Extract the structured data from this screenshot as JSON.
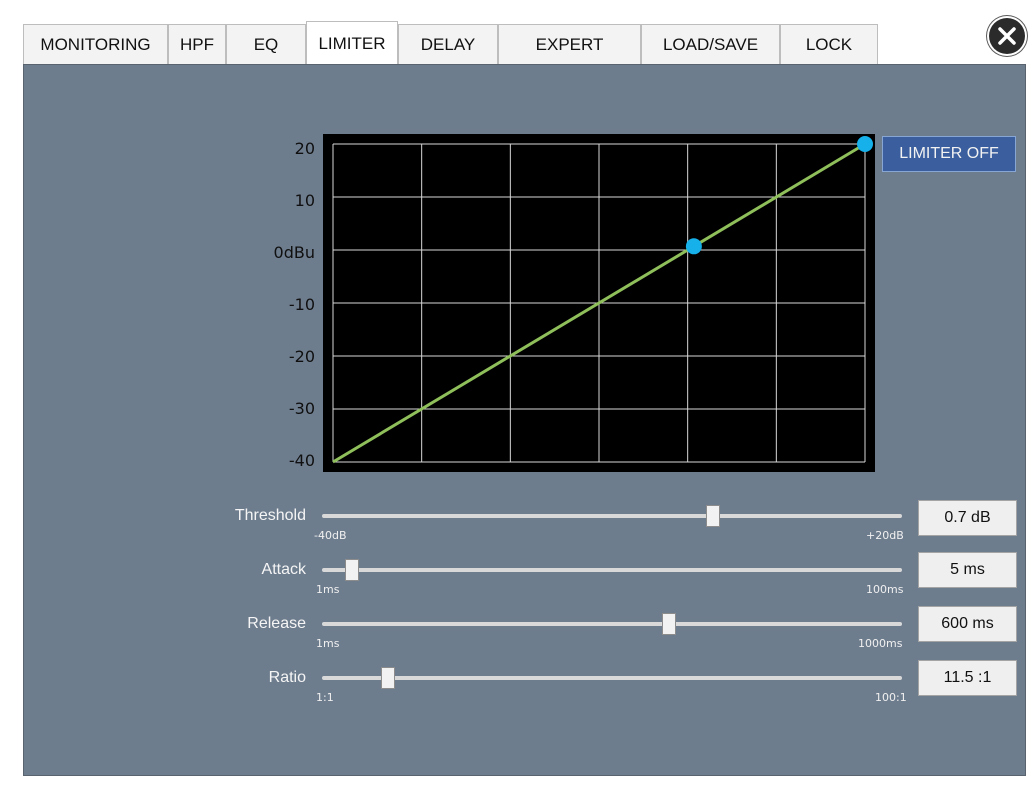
{
  "tabs": [
    {
      "label": "MONITORING",
      "active": false
    },
    {
      "label": "HPF",
      "active": false
    },
    {
      "label": "EQ",
      "active": false
    },
    {
      "label": "LIMITER",
      "active": true
    },
    {
      "label": "DELAY",
      "active": false
    },
    {
      "label": "EXPERT",
      "active": false
    },
    {
      "label": "LOAD/SAVE",
      "active": false
    },
    {
      "label": "LOCK",
      "active": false
    }
  ],
  "close_icon": "close-icon",
  "graph": {
    "y_ticks": [
      "20",
      "10",
      "0dBu",
      "-10",
      "-20",
      "-30",
      "-40"
    ],
    "line_color": "#8fbf5a",
    "point_color": "#16b0ea",
    "points": [
      {
        "x": 0.7,
        "y": 0.7
      },
      {
        "x": 20,
        "y": 20
      }
    ]
  },
  "chart_data": {
    "type": "line",
    "xlim": [
      -40,
      20
    ],
    "ylim": [
      -40,
      20
    ],
    "grid": true,
    "series": [
      {
        "x": [
          -40,
          0.7,
          20
        ],
        "y": [
          -40,
          0.7,
          20
        ]
      }
    ]
  },
  "limiter_button": {
    "label": "LIMITER OFF",
    "color": "#3b5f9e"
  },
  "controls": [
    {
      "label": "Threshold",
      "min_label": "-40dB",
      "max_label": "+20dB",
      "value": "0.7 dB",
      "position": 0.678
    },
    {
      "label": "Attack",
      "min_label": "1ms",
      "max_label": "100ms",
      "value": "5 ms",
      "position": 0.04
    },
    {
      "label": "Release",
      "min_label": "1ms",
      "max_label": "1000ms",
      "value": "600 ms",
      "position": 0.6
    },
    {
      "label": "Ratio",
      "min_label": "1:1",
      "max_label": "100:1",
      "value": "11.5 :1",
      "position": 0.105
    }
  ]
}
